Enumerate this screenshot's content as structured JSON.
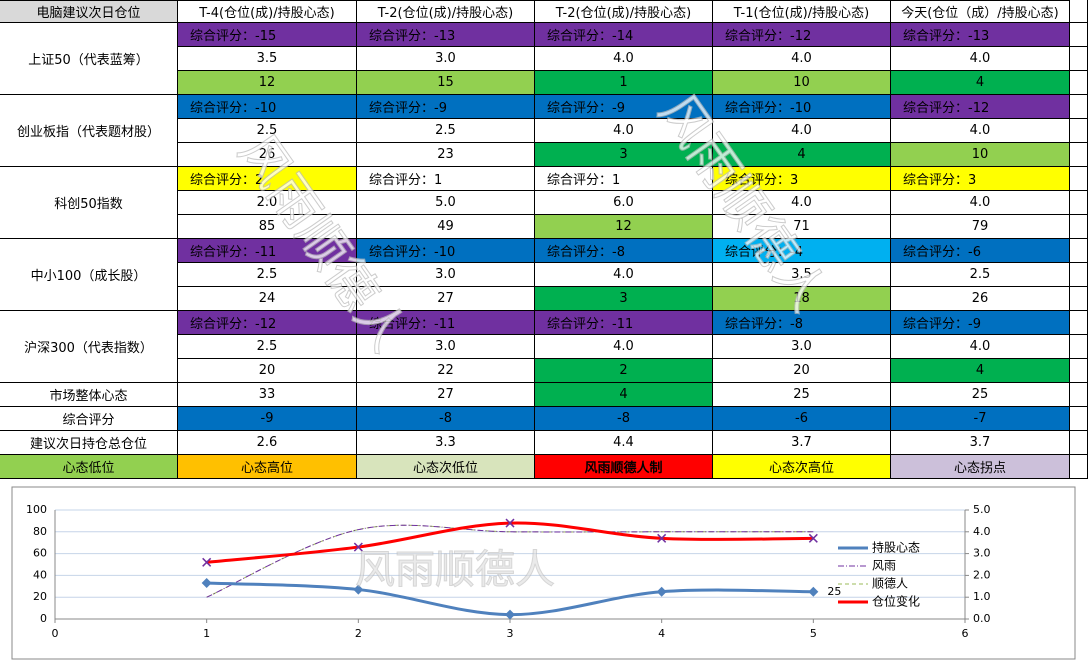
{
  "table": {
    "header": [
      "电脑建议次日仓位",
      "T-4(仓位(成)/持股心态)",
      "T-2(仓位(成)/持股心态)",
      "T-2(仓位(成)/持股心态)",
      "T-1(仓位(成)/持股心态)",
      "今天(仓位（成）/持股心态)"
    ],
    "groups": [
      {
        "label": "上证50（代表蓝筹）",
        "rows": [
          {
            "cells": [
              "综合评分：-15",
              "综合评分：-13",
              "综合评分：-14",
              "综合评分：-12",
              "综合评分：-13"
            ],
            "fills": [
              "#7030a0",
              "#7030a0",
              "#7030a0",
              "#7030a0",
              "#7030a0"
            ]
          },
          {
            "cells": [
              "3.5",
              "3.0",
              "4.0",
              "4.0",
              "4.0"
            ],
            "fills": [
              "#ffffff",
              "#ffffff",
              "#ffffff",
              "#ffffff",
              "#ffffff"
            ]
          },
          {
            "cells": [
              "12",
              "15",
              "1",
              "10",
              "4"
            ],
            "fills": [
              "#92d050",
              "#92d050",
              "#00b050",
              "#92d050",
              "#00b050"
            ]
          }
        ]
      },
      {
        "label": "创业板指（代表题材股）",
        "rows": [
          {
            "cells": [
              "综合评分：-10",
              "综合评分：-9",
              "综合评分：-9",
              "综合评分：-10",
              "综合评分：-12"
            ],
            "fills": [
              "#0070c0",
              "#0070c0",
              "#0070c0",
              "#0070c0",
              "#7030a0"
            ]
          },
          {
            "cells": [
              "2.5",
              "2.5",
              "4.0",
              "4.0",
              "4.0"
            ],
            "fills": [
              "#ffffff",
              "#ffffff",
              "#ffffff",
              "#ffffff",
              "#ffffff"
            ]
          },
          {
            "cells": [
              "26",
              "23",
              "3",
              "4",
              "10"
            ],
            "fills": [
              "#ffffff",
              "#ffffff",
              "#00b050",
              "#00b050",
              "#92d050"
            ]
          }
        ]
      },
      {
        "label": "科创50指数",
        "rows": [
          {
            "cells": [
              "综合评分：2",
              "综合评分：1",
              "综合评分：1",
              "综合评分：3",
              "综合评分：3"
            ],
            "fills": [
              "#ffff00",
              "#ffffff",
              "#ffffff",
              "#ffff00",
              "#ffff00"
            ]
          },
          {
            "cells": [
              "2.0",
              "5.0",
              "6.0",
              "4.0",
              "4.0"
            ],
            "fills": [
              "#ffffff",
              "#ffffff",
              "#ffffff",
              "#ffffff",
              "#ffffff"
            ]
          },
          {
            "cells": [
              "85",
              "49",
              "12",
              "71",
              "79"
            ],
            "fills": [
              "#ffffff",
              "#ffffff",
              "#92d050",
              "#ffffff",
              "#ffffff"
            ]
          }
        ]
      },
      {
        "label": "中小100（成长股）",
        "rows": [
          {
            "cells": [
              "综合评分：-11",
              "综合评分：-10",
              "综合评分：-8",
              "综合评分：-4",
              "综合评分：-6"
            ],
            "fills": [
              "#7030a0",
              "#0070c0",
              "#0070c0",
              "#00b0f0",
              "#0070c0"
            ]
          },
          {
            "cells": [
              "2.5",
              "3.0",
              "4.0",
              "3.5",
              "2.5"
            ],
            "fills": [
              "#ffffff",
              "#ffffff",
              "#ffffff",
              "#ffffff",
              "#ffffff"
            ]
          },
          {
            "cells": [
              "24",
              "27",
              "3",
              "18",
              "26"
            ],
            "fills": [
              "#ffffff",
              "#ffffff",
              "#00b050",
              "#92d050",
              "#ffffff"
            ]
          }
        ]
      },
      {
        "label": "沪深300（代表指数）",
        "rows": [
          {
            "cells": [
              "综合评分：-12",
              "综合评分：-11",
              "综合评分：-11",
              "综合评分：-8",
              "综合评分：-9"
            ],
            "fills": [
              "#7030a0",
              "#7030a0",
              "#7030a0",
              "#0070c0",
              "#0070c0"
            ]
          },
          {
            "cells": [
              "2.5",
              "3.0",
              "4.0",
              "3.0",
              "4.0"
            ],
            "fills": [
              "#ffffff",
              "#ffffff",
              "#ffffff",
              "#ffffff",
              "#ffffff"
            ]
          },
          {
            "cells": [
              "20",
              "22",
              "2",
              "20",
              "4"
            ],
            "fills": [
              "#ffffff",
              "#ffffff",
              "#00b050",
              "#ffffff",
              "#00b050"
            ]
          }
        ]
      }
    ],
    "summary": [
      {
        "label": "市场整体心态",
        "cells": [
          "33",
          "27",
          "4",
          "25",
          "25"
        ],
        "fills": [
          "#ffffff",
          "#ffffff",
          "#00b050",
          "#ffffff",
          "#ffffff"
        ]
      },
      {
        "label": "综合评分",
        "cells": [
          "-9",
          "-8",
          "-8",
          "-6",
          "-7"
        ],
        "fills": [
          "#0070c0",
          "#0070c0",
          "#0070c0",
          "#0070c0",
          "#0070c0"
        ]
      },
      {
        "label": "建议次日持仓总仓位",
        "cells": [
          "2.6",
          "3.3",
          "4.4",
          "3.7",
          "3.7"
        ],
        "fills": [
          "#ffffff",
          "#ffffff",
          "#ffffff",
          "#ffffff",
          "#ffffff"
        ]
      }
    ],
    "legend": [
      {
        "label": "心态低位",
        "fill": "#92d050"
      },
      {
        "label": "心态高位",
        "fill": "#ffc000"
      },
      {
        "label": "心态次低位",
        "fill": "#d8e4bc"
      },
      {
        "label": "风雨顺德人制",
        "fill": "#ff0000"
      },
      {
        "label": "心态次高位",
        "fill": "#ffff00"
      },
      {
        "label": "心态拐点",
        "fill": "#ccc0da"
      }
    ]
  },
  "watermark": "风雨顺德人",
  "chart_data": {
    "type": "line",
    "x": [
      1,
      2,
      3,
      4,
      5
    ],
    "xlim": [
      0,
      6
    ],
    "xticks": [
      0,
      1,
      2,
      3,
      4,
      5,
      6
    ],
    "ylim": [
      0,
      100
    ],
    "yticks": [
      0,
      20,
      40,
      60,
      80,
      100
    ],
    "y2lim": [
      0,
      5
    ],
    "y2ticks": [
      {
        "value": 0,
        "label": "0.0"
      },
      {
        "value": 1,
        "label": "1.0"
      },
      {
        "value": 2,
        "label": "2.0"
      },
      {
        "value": 3,
        "label": "3.0"
      },
      {
        "value": 4,
        "label": "4.0"
      },
      {
        "value": 5,
        "label": "5.0"
      }
    ],
    "grid": true,
    "series": [
      {
        "name": "持股心态",
        "color": "#4f81bd",
        "values": [
          33,
          27,
          4,
          25,
          25
        ],
        "marker": "diamond",
        "width": 3,
        "value_labels": [
          null,
          null,
          null,
          null,
          "25"
        ]
      },
      {
        "name": "风雨",
        "color": "#7030a0",
        "values": [
          1,
          4.1,
          4,
          4,
          4
        ],
        "axis": "y2",
        "dash": "6 2 1 2",
        "width": 1
      },
      {
        "name": "顺德人",
        "color": "#9bbb59",
        "values": [
          1,
          4.1,
          4,
          4,
          4
        ],
        "axis": "y2",
        "dash": "4 3",
        "width": 1
      },
      {
        "name": "仓位变化",
        "color": "#ff0000",
        "values": [
          2.6,
          3.3,
          4.4,
          3.7,
          3.7
        ],
        "axis": "y2",
        "marker": "x",
        "width": 3
      }
    ]
  }
}
